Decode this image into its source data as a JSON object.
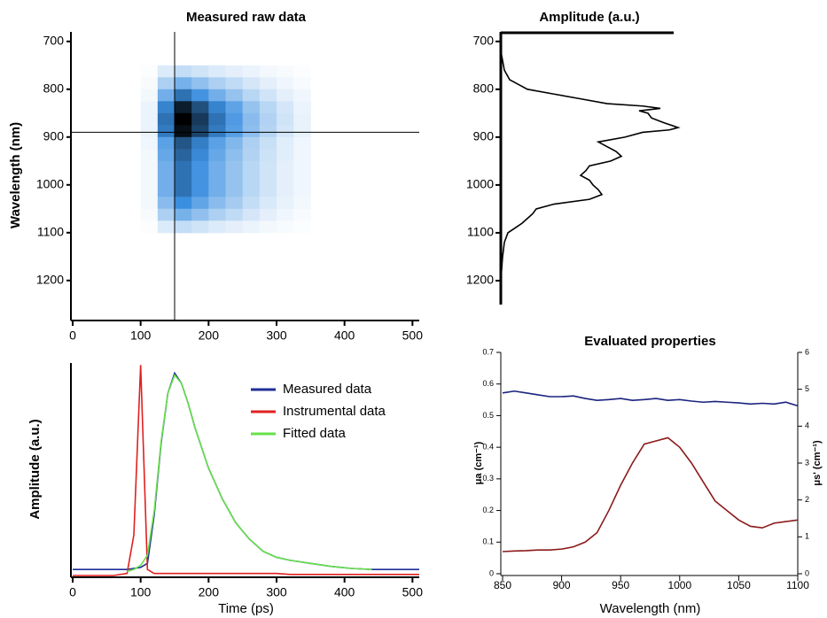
{
  "chart_data": [
    {
      "type": "heatmap",
      "title": "Measured raw data",
      "y_label": "Wavelength (nm)",
      "x": [
        112.5,
        137.5,
        162.5,
        187.5,
        212.5,
        237.5,
        262.5,
        287.5,
        312.5,
        337.5
      ],
      "y": [
        762.5,
        787.5,
        812.5,
        837.5,
        862.5,
        887.5,
        912.5,
        937.5,
        962.5,
        987.5,
        1012.5,
        1037.5,
        1062.5,
        1087.5
      ],
      "z": [
        [
          0.01,
          0.09,
          0.15,
          0.12,
          0.09,
          0.07,
          0.05,
          0.03,
          0.02,
          0.01
        ],
        [
          0.02,
          0.21,
          0.35,
          0.28,
          0.21,
          0.16,
          0.11,
          0.07,
          0.04,
          0.02
        ],
        [
          0.03,
          0.36,
          0.6,
          0.48,
          0.36,
          0.27,
          0.18,
          0.12,
          0.07,
          0.04
        ],
        [
          0.05,
          0.54,
          0.9,
          0.72,
          0.54,
          0.41,
          0.27,
          0.18,
          0.11,
          0.05
        ],
        [
          0.05,
          0.6,
          1.0,
          0.8,
          0.6,
          0.45,
          0.3,
          0.2,
          0.12,
          0.06
        ],
        [
          0.05,
          0.57,
          0.95,
          0.76,
          0.57,
          0.43,
          0.29,
          0.19,
          0.11,
          0.06
        ],
        [
          0.04,
          0.42,
          0.7,
          0.56,
          0.42,
          0.32,
          0.21,
          0.14,
          0.08,
          0.04
        ],
        [
          0.03,
          0.39,
          0.65,
          0.52,
          0.39,
          0.29,
          0.2,
          0.13,
          0.08,
          0.04
        ],
        [
          0.03,
          0.36,
          0.6,
          0.48,
          0.36,
          0.27,
          0.18,
          0.12,
          0.07,
          0.04
        ],
        [
          0.03,
          0.36,
          0.6,
          0.48,
          0.36,
          0.27,
          0.18,
          0.12,
          0.07,
          0.04
        ],
        [
          0.03,
          0.36,
          0.6,
          0.48,
          0.36,
          0.27,
          0.18,
          0.12,
          0.07,
          0.04
        ],
        [
          0.03,
          0.3,
          0.5,
          0.4,
          0.3,
          0.23,
          0.15,
          0.1,
          0.06,
          0.03
        ],
        [
          0.02,
          0.21,
          0.35,
          0.28,
          0.21,
          0.16,
          0.11,
          0.07,
          0.04,
          0.02
        ],
        [
          0.01,
          0.09,
          0.15,
          0.12,
          0.09,
          0.07,
          0.05,
          0.03,
          0.02,
          0.01
        ]
      ],
      "colors": [
        "#ffffff",
        "#3b8fe0",
        "#000000"
      ],
      "xlim": [
        0,
        510
      ],
      "xticks": [
        0,
        100,
        200,
        300,
        400,
        500
      ],
      "ylim": [
        680,
        1280
      ],
      "yticks": [
        700,
        800,
        900,
        1000,
        1100,
        1200
      ],
      "y_inverted": true,
      "crosshair": {
        "x": 150,
        "y": 890
      }
    },
    {
      "type": "line",
      "orientation": "vertical",
      "title": "Amplitude (a.u.)",
      "color": "#000000",
      "x": [
        700,
        720,
        740,
        760,
        780,
        790,
        800,
        810,
        820,
        830,
        835,
        840,
        845,
        850,
        860,
        870,
        880,
        885,
        890,
        900,
        910,
        920,
        930,
        940,
        950,
        960,
        970,
        980,
        990,
        1000,
        1010,
        1020,
        1030,
        1040,
        1050,
        1060,
        1070,
        1080,
        1090,
        1100,
        1120,
        1150,
        1200,
        1250
      ],
      "values": [
        0.0,
        0.0,
        0.01,
        0.02,
        0.05,
        0.1,
        0.15,
        0.3,
        0.45,
        0.6,
        0.8,
        0.9,
        0.78,
        0.83,
        0.85,
        0.92,
        1.0,
        0.95,
        0.8,
        0.7,
        0.55,
        0.6,
        0.65,
        0.68,
        0.62,
        0.5,
        0.48,
        0.45,
        0.5,
        0.52,
        0.55,
        0.57,
        0.5,
        0.3,
        0.2,
        0.18,
        0.15,
        0.12,
        0.08,
        0.04,
        0.02,
        0.01,
        0.0,
        0.0
      ],
      "xlim": [
        680,
        1250
      ],
      "xticks": [
        700,
        800,
        900,
        1000,
        1100,
        1200
      ],
      "ylim": [
        0,
        1
      ]
    },
    {
      "type": "line",
      "y_label": "Amplitude (a.u.)",
      "x_label": "Time (ps)",
      "x": [
        0,
        20,
        40,
        60,
        80,
        90,
        100,
        110,
        120,
        130,
        140,
        150,
        160,
        170,
        180,
        200,
        220,
        240,
        260,
        280,
        300,
        320,
        350,
        380,
        410,
        440,
        470,
        510
      ],
      "series": [
        {
          "name": "Measured data",
          "color": "#1f2f96",
          "values": [
            0.03,
            0.03,
            0.03,
            0.03,
            0.03,
            0.035,
            0.04,
            0.06,
            0.3,
            0.65,
            0.9,
            1.0,
            0.95,
            0.85,
            0.73,
            0.53,
            0.38,
            0.26,
            0.18,
            0.12,
            0.09,
            0.075,
            0.06,
            0.045,
            0.035,
            0.03,
            0.03,
            0.03
          ]
        },
        {
          "name": "Instrumental data",
          "color": "#e02020",
          "values": [
            0.0,
            0.0,
            0.0,
            0.0,
            0.01,
            0.2,
            1.04,
            0.03,
            0.01,
            0.01,
            0.01,
            0.01,
            0.01,
            0.01,
            0.01,
            0.01,
            0.01,
            0.01,
            0.01,
            0.01,
            0.01,
            0.005,
            0.005,
            0.005,
            0.005,
            0.005,
            0.005,
            0.005
          ]
        },
        {
          "name": "Fitted data",
          "color": "#66e04a",
          "values": [
            null,
            null,
            null,
            null,
            0.02,
            0.03,
            0.05,
            0.1,
            0.32,
            0.66,
            0.9,
            0.99,
            0.95,
            0.85,
            0.73,
            0.53,
            0.38,
            0.26,
            0.18,
            0.12,
            0.09,
            0.075,
            0.06,
            0.045,
            0.035,
            0.03,
            null,
            null
          ]
        }
      ],
      "xlim": [
        0,
        510
      ],
      "xticks": [
        0,
        100,
        200,
        300,
        400,
        500
      ],
      "ylim": [
        0,
        1.05
      ],
      "legend": "upper right"
    },
    {
      "type": "line",
      "title": "Evaluated properties",
      "x_label": "Wavelength (nm)",
      "y_label": "μa (cm⁻¹)",
      "y2_label": "μs' (cm⁻¹)",
      "x": [
        850,
        860,
        870,
        880,
        890,
        900,
        910,
        920,
        930,
        940,
        950,
        960,
        970,
        980,
        990,
        1000,
        1010,
        1020,
        1030,
        1040,
        1050,
        1060,
        1070,
        1080,
        1090,
        1100
      ],
      "series": [
        {
          "color": "#8b1a1a",
          "values": [
            0.07,
            0.072,
            0.073,
            0.075,
            0.075,
            0.078,
            0.085,
            0.1,
            0.13,
            0.2,
            0.28,
            0.35,
            0.41,
            0.42,
            0.43,
            0.4,
            0.35,
            0.29,
            0.23,
            0.2,
            0.17,
            0.15,
            0.145,
            0.16,
            0.165,
            0.17
          ]
        },
        {
          "color": "#1a237e",
          "axis": "y2",
          "values": [
            4.9,
            4.95,
            4.9,
            4.85,
            4.8,
            4.8,
            4.82,
            4.75,
            4.7,
            4.72,
            4.75,
            4.7,
            4.72,
            4.75,
            4.7,
            4.72,
            4.68,
            4.65,
            4.67,
            4.65,
            4.63,
            4.6,
            4.62,
            4.6,
            4.65,
            4.55
          ]
        }
      ],
      "xlim": [
        850,
        1100
      ],
      "xticks": [
        850,
        900,
        950,
        1000,
        1050,
        1100
      ],
      "ylim": [
        0,
        0.7
      ],
      "yticks": [
        0,
        0.1,
        0.2,
        0.3,
        0.4,
        0.5,
        0.6,
        0.7
      ],
      "y2lim": [
        0,
        6
      ],
      "y2ticks": [
        0,
        1,
        2,
        3,
        4,
        5,
        6
      ]
    }
  ]
}
